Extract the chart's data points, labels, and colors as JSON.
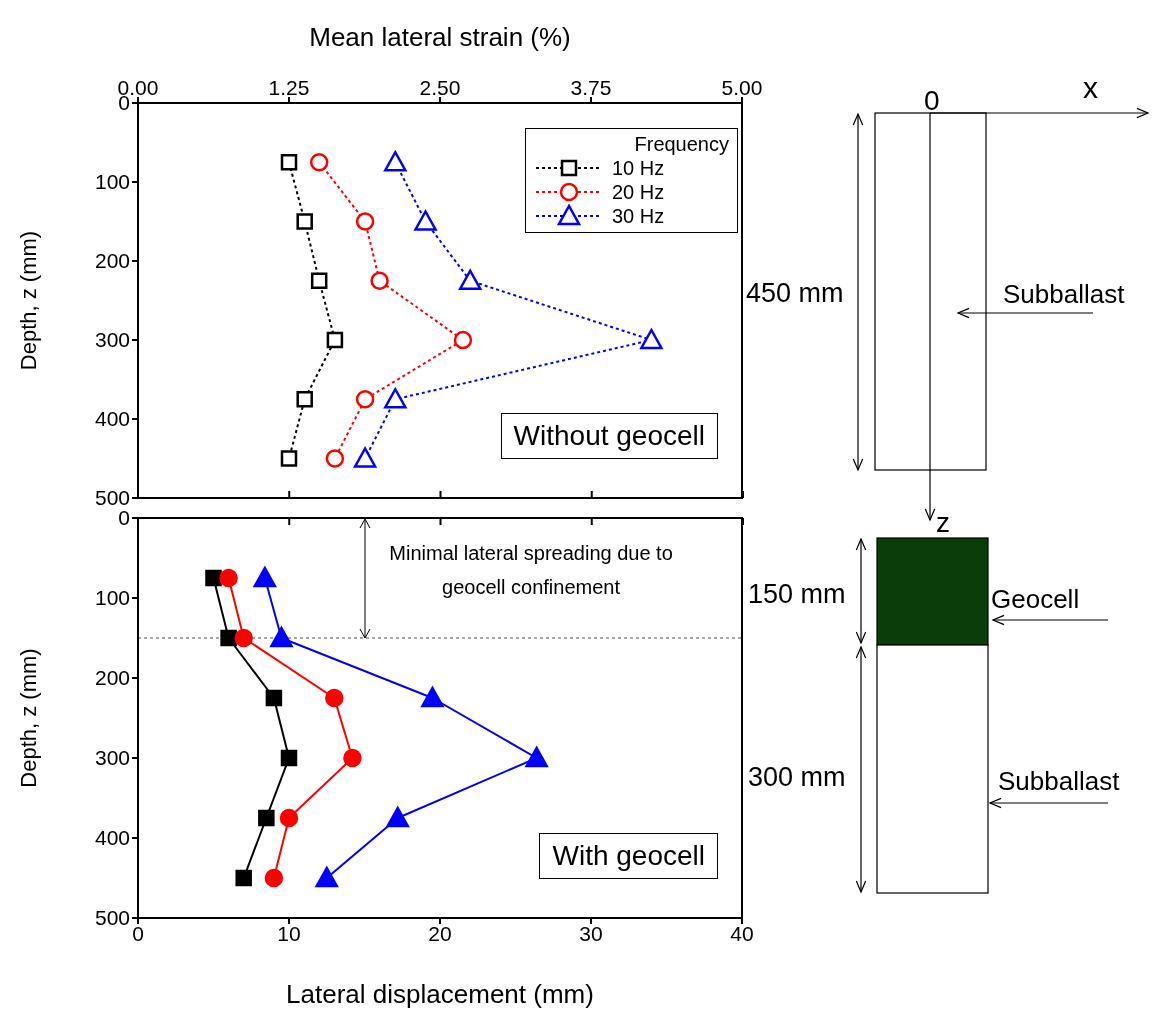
{
  "chart_data": [
    {
      "type": "line",
      "xlabel": "Mean lateral strain (%)",
      "ylabel": "Depth, z (mm)",
      "legend_title": "Frequency",
      "legend": "top right",
      "line_style": "dotted",
      "grid": false,
      "xlim": [
        0,
        5
      ],
      "xticks": [
        {
          "value": 0,
          "label": "0.00"
        },
        1.25,
        {
          "value": 2.5,
          "label": "2.50"
        },
        3.75,
        {
          "value": 5,
          "label": "5.00"
        }
      ],
      "ylim": [
        500,
        0
      ],
      "yticks": [
        0,
        100,
        200,
        300,
        400,
        500
      ],
      "annotations": [
        "Without geocell"
      ],
      "series": [
        {
          "name": "10 Hz",
          "color": "#000000",
          "marker": "square",
          "x": [
            1.25,
            1.38,
            1.5,
            1.63,
            1.38,
            1.25
          ],
          "values": [
            75,
            150,
            225,
            300,
            375,
            450
          ]
        },
        {
          "name": "20 Hz",
          "color": "#ff0000",
          "marker": "circle",
          "x": [
            1.5,
            1.88,
            2.0,
            2.69,
            1.88,
            1.63
          ],
          "values": [
            75,
            150,
            225,
            300,
            375,
            450
          ]
        },
        {
          "name": "30 Hz",
          "color": "#0000ff",
          "marker": "triangle",
          "x": [
            2.13,
            2.38,
            2.75,
            4.25,
            2.13,
            1.88
          ],
          "values": [
            75,
            150,
            225,
            300,
            375,
            450
          ]
        }
      ]
    },
    {
      "type": "line",
      "xlabel": "Lateral displacement (mm)",
      "ylabel": "Depth, z (mm)",
      "legend": false,
      "line_style": "solid",
      "grid": false,
      "xlim": [
        0,
        40
      ],
      "xticks": [
        0,
        10,
        20,
        30,
        40
      ],
      "ylim": [
        500,
        0
      ],
      "yticks": [
        0,
        100,
        200,
        300,
        400,
        500
      ],
      "annotations": [
        "With geocell"
      ],
      "ref_lines": [
        {
          "axis": "y",
          "value": 150,
          "label": "Minimal lateral spreading due to geocell confinement",
          "line_style": "dotted",
          "color": "#555555"
        }
      ],
      "series": [
        {
          "color": "#000000",
          "marker": "square",
          "x": [
            5,
            6,
            9,
            10,
            8.5,
            7
          ],
          "values": [
            75,
            150,
            225,
            300,
            375,
            450
          ]
        },
        {
          "color": "#ff0000",
          "marker": "circle",
          "x": [
            6,
            7,
            13,
            14.2,
            10,
            9
          ],
          "values": [
            75,
            150,
            225,
            300,
            375,
            450
          ]
        },
        {
          "color": "#0000ff",
          "marker": "triangle",
          "x": [
            8.4,
            9.5,
            19.5,
            26.4,
            17.2,
            12.5
          ],
          "values": [
            75,
            150,
            225,
            300,
            375,
            450
          ]
        }
      ]
    },
    {
      "type": "other",
      "annotations": [
        "x",
        "0",
        "z",
        "450 mm",
        "Subballast",
        "150 mm",
        "Geocell",
        "300 mm",
        "Subballast"
      ]
    }
  ]
}
